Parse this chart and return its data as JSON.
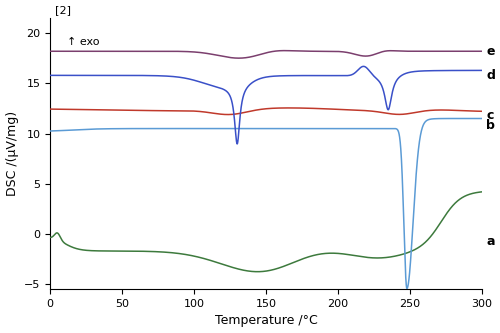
{
  "xlim": [
    0,
    300
  ],
  "ylim": [
    -5.5,
    21.5
  ],
  "xlabel": "Temperature /°C",
  "ylabel": "DSC /(μV/mg)",
  "yticks": [
    -5,
    0,
    5,
    10,
    15,
    20
  ],
  "xticks": [
    0,
    50,
    100,
    150,
    200,
    250,
    300
  ],
  "label_2": "[2]",
  "exo_label": "↑ exo",
  "curve_labels": [
    "a",
    "b",
    "c",
    "d",
    "e"
  ],
  "colors": {
    "a": "#3d7a3d",
    "b": "#5b9bd5",
    "c": "#c0392b",
    "d": "#3a50c8",
    "e": "#7b3f6e"
  },
  "background": "#ffffff"
}
